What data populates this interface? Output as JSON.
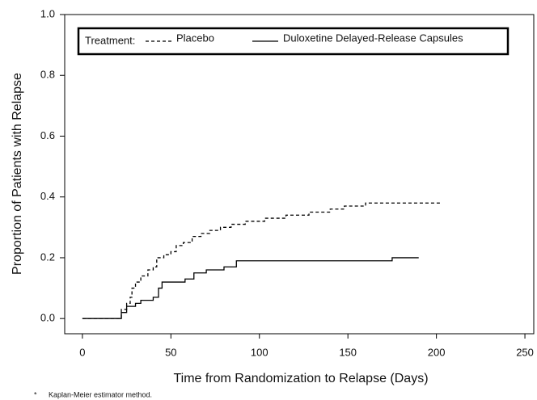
{
  "chart_data": {
    "type": "line",
    "step": true,
    "x_label": "Time from Randomization to Relapse (Days)",
    "y_label": "Proportion of Patients with Relapse",
    "legend_title": "Treatment:",
    "footnote_marker": "*",
    "footnote": "Kaplan-Meier estimator method.",
    "xlim": [
      -10,
      255
    ],
    "ylim": [
      -0.05,
      1.0
    ],
    "xticks": [
      0,
      50,
      100,
      150,
      200,
      250
    ],
    "yticks": [
      {
        "value": 0,
        "label": "0.0"
      },
      {
        "value": 0.2,
        "label": "0.2"
      },
      {
        "value": 0.4,
        "label": "0.4"
      },
      {
        "value": 0.6,
        "label": "0.6"
      },
      {
        "value": 0.8,
        "label": "0.8"
      },
      {
        "value": 1,
        "label": "1.0"
      }
    ],
    "series": [
      {
        "name": "Placebo",
        "color": "#000000",
        "dash": "dashed",
        "x": [
          0,
          20,
          22,
          25,
          27,
          28,
          30,
          33,
          37,
          40,
          42,
          46,
          50,
          53,
          57,
          62,
          67,
          72,
          78,
          84,
          92,
          103,
          115,
          128,
          140,
          148,
          160,
          203
        ],
        "values": [
          0,
          0,
          0.03,
          0.05,
          0.07,
          0.1,
          0.12,
          0.14,
          0.16,
          0.17,
          0.2,
          0.21,
          0.22,
          0.24,
          0.25,
          0.27,
          0.28,
          0.29,
          0.3,
          0.31,
          0.32,
          0.33,
          0.34,
          0.35,
          0.36,
          0.37,
          0.38,
          0.38
        ]
      },
      {
        "name": "Duloxetine Delayed-Release Capsules",
        "color": "#000000",
        "dash": "solid",
        "x": [
          0,
          20,
          22,
          25,
          30,
          33,
          40,
          43,
          45,
          58,
          63,
          70,
          80,
          87,
          174,
          175,
          190
        ],
        "values": [
          0,
          0,
          0.02,
          0.04,
          0.05,
          0.06,
          0.07,
          0.1,
          0.12,
          0.13,
          0.15,
          0.16,
          0.17,
          0.19,
          0.19,
          0.2,
          0.2
        ]
      }
    ]
  }
}
